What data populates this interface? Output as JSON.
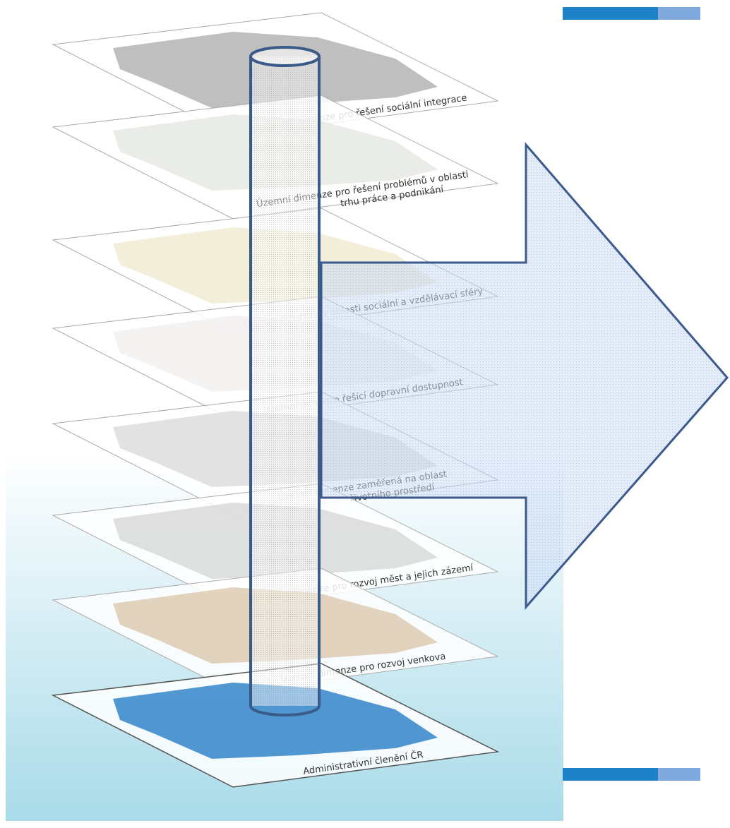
{
  "layers": [
    {
      "lines": [
        "Územní dimenze pro řešení sociální integrace"
      ]
    },
    {
      "lines": [
        "Územní dimenze pro řešení problémů v oblasti",
        "trhu práce a podnikání"
      ]
    },
    {
      "lines": [
        "Územní dimenze v oblasti sociální a vzdělávací sféry"
      ]
    },
    {
      "lines": [
        "Územní dimenze řešící dopravní dostupnost"
      ]
    },
    {
      "lines": [
        "Územní dimenze zaměřená na oblast",
        "životního prostředí"
      ]
    },
    {
      "lines": [
        "Územní dimenze pro rozvoj měst a jejich zázemí"
      ]
    },
    {
      "lines": [
        "Územní dimenze pro rozvoj venkova"
      ]
    },
    {
      "lines": [
        "Administrativní členění ČR"
      ]
    }
  ]
}
